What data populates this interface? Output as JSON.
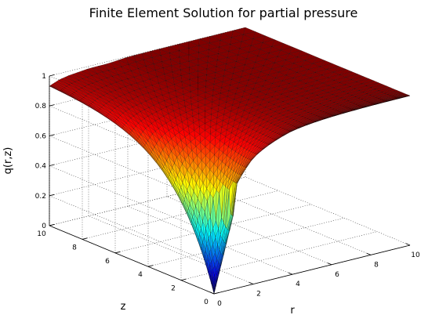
{
  "chart_data": {
    "type": "surface",
    "title": "Finite Element Solution for partial pressure",
    "xlabel": "r",
    "ylabel": "z",
    "zlabel": "q(r,z)",
    "xlim": [
      0,
      10
    ],
    "ylim": [
      0,
      10
    ],
    "zlim": [
      0,
      1
    ],
    "x_ticks": [
      "0",
      "2",
      "4",
      "6",
      "8",
      "10"
    ],
    "y_ticks": [
      "0",
      "2",
      "4",
      "6",
      "8",
      "10"
    ],
    "z_ticks": [
      "0",
      "0.2",
      "0.4",
      "0.6",
      "0.8",
      "1"
    ],
    "grid": true,
    "colormap": "jet",
    "edge_color": "#000000",
    "surface_samples": {
      "r": [
        0,
        0.5,
        1,
        2,
        3,
        4,
        6,
        8,
        10
      ],
      "q_at_z0": [
        0.0,
        0.35,
        0.5,
        0.66,
        0.74,
        0.8,
        0.87,
        0.92,
        0.95
      ],
      "q_at_z10": [
        0.95,
        0.97,
        0.98,
        0.99,
        0.99,
        1.0,
        1.0,
        1.0,
        1.0
      ]
    }
  }
}
